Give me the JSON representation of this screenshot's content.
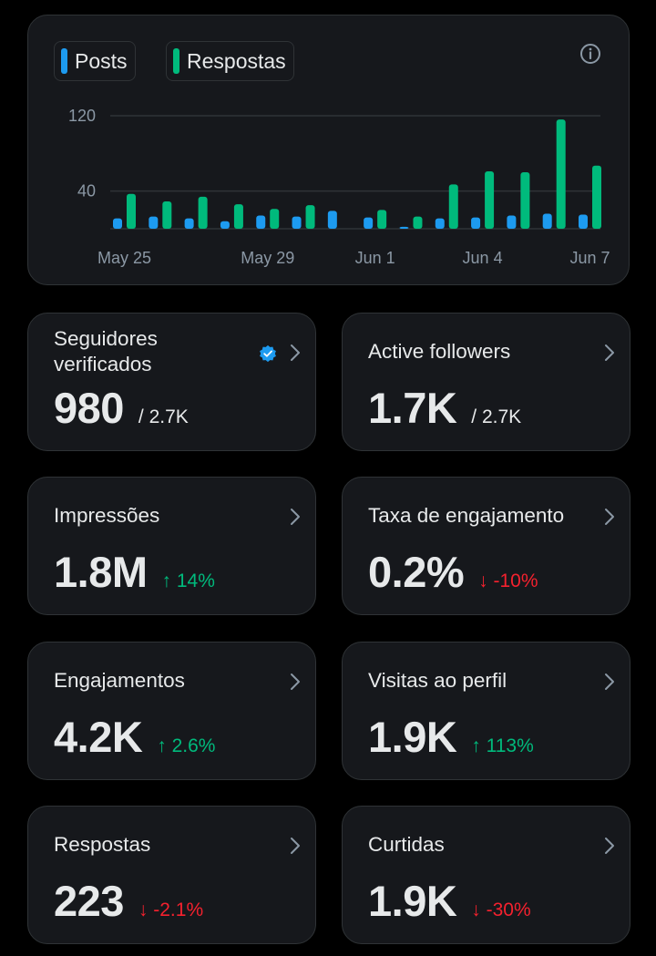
{
  "legend": [
    {
      "label": "Posts",
      "color": "#1d9bf0"
    },
    {
      "label": "Respostas",
      "color": "#00ba7c"
    }
  ],
  "chart_data": {
    "type": "bar",
    "categories": [
      "May 25",
      "May 26",
      "May 27",
      "May 28",
      "May 29",
      "May 30",
      "May 31",
      "Jun 1",
      "Jun 2",
      "Jun 3",
      "Jun 4",
      "Jun 5",
      "Jun 6",
      "Jun 7"
    ],
    "x_tick_labels": [
      "May 25",
      "May 29",
      "Jun 1",
      "Jun 4",
      "Jun 7"
    ],
    "y_tick_labels": [
      "120",
      "40"
    ],
    "y_ticks": [
      120,
      40
    ],
    "ylim": [
      0,
      130
    ],
    "grid": true,
    "series": [
      {
        "name": "Posts",
        "color": "#1d9bf0",
        "values": [
          11,
          13,
          11,
          8,
          14,
          13,
          19,
          12,
          2,
          11,
          12,
          14,
          16,
          15
        ]
      },
      {
        "name": "Respostas",
        "color": "#00ba7c",
        "values": [
          37,
          29,
          34,
          26,
          21,
          25,
          0,
          20,
          13,
          47,
          61,
          60,
          116,
          67
        ]
      }
    ]
  },
  "stats": [
    {
      "label": "Seguidores verificados",
      "value": "980",
      "sub": "/ 2.7K",
      "verified": true
    },
    {
      "label": "Active followers",
      "value": "1.7K",
      "sub": "/ 2.7K"
    },
    {
      "label": "Impressões",
      "value": "1.8M",
      "delta": "↑ 14%",
      "dir": "up"
    },
    {
      "label": "Taxa de engajamento",
      "value": "0.2%",
      "delta": "↓ -10%",
      "dir": "down"
    },
    {
      "label": "Engajamentos",
      "value": "4.2K",
      "delta": "↑ 2.6%",
      "dir": "up"
    },
    {
      "label": "Visitas ao perfil",
      "value": "1.9K",
      "delta": "↑ 113%",
      "dir": "up"
    },
    {
      "label": "Respostas",
      "value": "223",
      "delta": "↓ -2.1%",
      "dir": "down"
    },
    {
      "label": "Curtidas",
      "value": "1.9K",
      "delta": "↓ -30%",
      "dir": "down"
    }
  ],
  "icons": {
    "info": "info-icon",
    "chevron": "chevron-right-icon",
    "verified": "verified-badge-icon"
  },
  "colors": {
    "background": "#000000",
    "card": "#16181c",
    "border": "#2f3336",
    "up": "#00ba7c",
    "down": "#f4212e",
    "muted": "#8b98a5"
  }
}
